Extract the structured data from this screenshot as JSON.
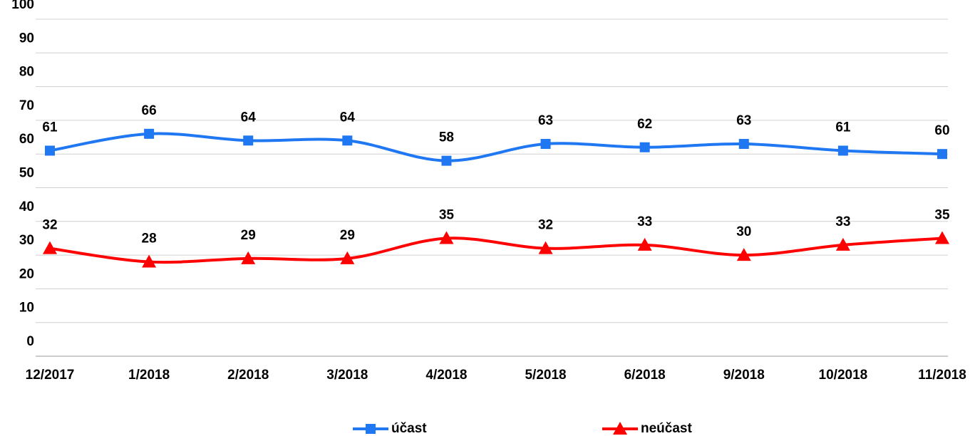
{
  "chart_data": {
    "type": "line",
    "categories": [
      "12/2017",
      "1/2018",
      "2/2018",
      "3/2018",
      "4/2018",
      "5/2018",
      "6/2018",
      "9/2018",
      "10/2018",
      "11/2018"
    ],
    "series": [
      {
        "name": "účast",
        "color": "#1f77f2",
        "marker": "square",
        "values": [
          61,
          66,
          64,
          64,
          58,
          63,
          62,
          63,
          61,
          60
        ]
      },
      {
        "name": "neúčast",
        "color": "#ff0000",
        "marker": "triangle",
        "values": [
          32,
          28,
          29,
          29,
          35,
          32,
          33,
          30,
          33,
          35
        ]
      }
    ],
    "ylim": [
      0,
      100
    ],
    "yticks": [
      0,
      10,
      20,
      30,
      40,
      50,
      60,
      70,
      80,
      90,
      100
    ],
    "grid": true,
    "smooth": true,
    "legend": "bottom"
  }
}
